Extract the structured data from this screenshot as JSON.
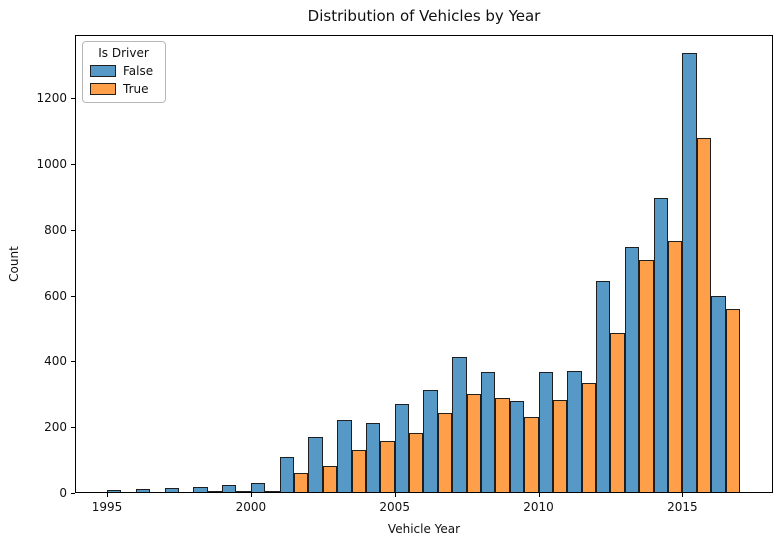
{
  "chart_data": {
    "type": "bar",
    "subtype": "grouped-histogram",
    "title": "Distribution of Vehicles by Year",
    "xlabel": "Vehicle Year",
    "ylabel": "Count",
    "grid": false,
    "legend": {
      "title": "Is Driver",
      "position": "upper-left",
      "entries": [
        "False",
        "True"
      ]
    },
    "categories": [
      1995,
      1996,
      1997,
      1998,
      1999,
      2000,
      2001,
      2002,
      2003,
      2004,
      2005,
      2006,
      2007,
      2008,
      2009,
      2010,
      2011,
      2012,
      2013,
      2014,
      2015,
      2016
    ],
    "series": [
      {
        "name": "False",
        "color": "#5799C6",
        "values": [
          5,
          10,
          11,
          15,
          20,
          28,
          107,
          167,
          219,
          209,
          268,
          310,
          411,
          366,
          278,
          364,
          369,
          640,
          745,
          893,
          1333,
          597
        ]
      },
      {
        "name": "True",
        "color": "#FF9F4A",
        "values": [
          1,
          1,
          1,
          2,
          2,
          3,
          58,
          80,
          129,
          154,
          178,
          239,
          297,
          286,
          229,
          279,
          330,
          483,
          705,
          763,
          1076,
          556
        ]
      }
    ],
    "x_ticks": [
      1995,
      2000,
      2005,
      2010,
      2015
    ],
    "y_ticks": [
      0,
      200,
      400,
      600,
      800,
      1000,
      1200
    ],
    "xlim": [
      1993.9,
      2018.2
    ],
    "ylim": [
      0,
      1392
    ]
  },
  "colors": {
    "bar_edge": "#1f1f1f",
    "axes_edge": "#000000",
    "background": "#ffffff",
    "false_fill": "#5799C6",
    "true_fill": "#FF9F4A"
  }
}
